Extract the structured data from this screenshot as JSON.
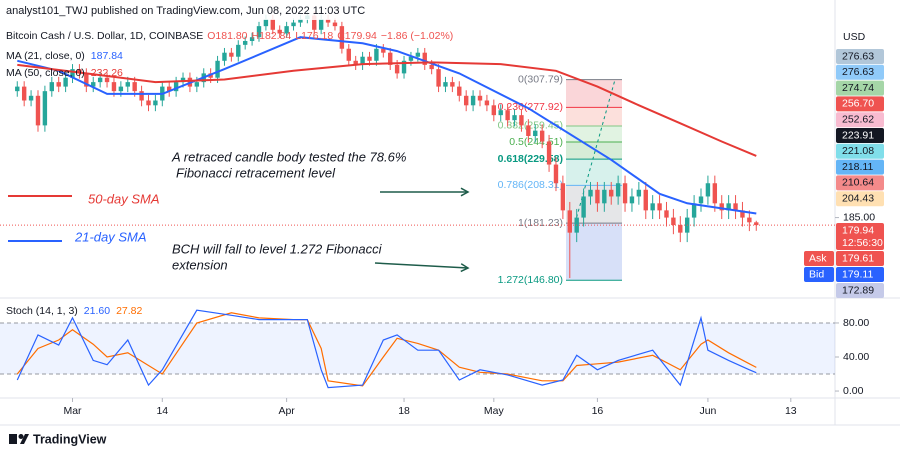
{
  "header": {
    "publisher": "analyst101_TWJ published on TradingView.com, Jun 08, 2022 11:03 UTC"
  },
  "chart_data": [
    {
      "type": "candlestick",
      "title": "Bitcoin Cash / U.S. Dollar, 1D, COINBASE",
      "ohlc_legend": [
        "O181.80",
        "H182.84",
        "L176.18",
        "C179.94",
        "−1.86 (−1.02%)"
      ],
      "open": [
        295,
        300,
        285,
        290,
        260,
        295,
        305,
        300,
        310,
        320,
        315,
        300,
        305,
        310,
        305,
        295,
        300,
        305,
        295,
        285,
        280,
        285,
        300,
        295,
        305,
        310,
        300,
        305,
        315,
        310,
        330,
        340,
        335,
        350,
        355,
        360,
        375,
        385,
        370,
        365,
        375,
        380,
        385,
        390,
        370,
        385,
        380,
        375,
        345,
        330,
        325,
        335,
        330,
        345,
        340,
        325,
        315,
        330,
        335,
        340,
        325,
        320,
        300,
        305,
        300,
        290,
        280,
        290,
        285,
        280,
        270,
        275,
        265,
        270,
        260,
        250,
        255,
        245,
        225,
        210,
        190,
        175,
        185,
        200,
        205,
        195,
        205,
        200,
        210,
        195,
        200,
        205,
        190,
        195,
        190,
        185,
        180,
        175,
        185,
        195,
        200,
        210,
        195,
        190,
        195,
        190,
        185,
        181.8
      ],
      "high": [
        306,
        306,
        296,
        296,
        301,
        311,
        311,
        316,
        326,
        326,
        321,
        311,
        316,
        316,
        311,
        306,
        311,
        311,
        301,
        291,
        291,
        306,
        306,
        311,
        316,
        316,
        311,
        321,
        321,
        336,
        346,
        346,
        356,
        361,
        366,
        381,
        391,
        391,
        376,
        381,
        386,
        391,
        396,
        396,
        391,
        391,
        386,
        381,
        351,
        336,
        341,
        341,
        351,
        351,
        346,
        331,
        336,
        341,
        346,
        346,
        331,
        326,
        311,
        311,
        306,
        296,
        296,
        296,
        291,
        286,
        281,
        281,
        276,
        276,
        266,
        261,
        261,
        251,
        231,
        216,
        196,
        191,
        206,
        211,
        211,
        211,
        211,
        216,
        216,
        206,
        211,
        211,
        201,
        201,
        196,
        191,
        186,
        191,
        201,
        206,
        216,
        216,
        201,
        201,
        201,
        196,
        190,
        182.84
      ],
      "low": [
        289,
        279,
        279,
        254,
        254,
        289,
        294,
        294,
        304,
        309,
        294,
        294,
        299,
        299,
        289,
        289,
        294,
        289,
        279,
        274,
        274,
        279,
        289,
        289,
        299,
        294,
        294,
        299,
        304,
        304,
        324,
        329,
        329,
        344,
        349,
        354,
        369,
        364,
        359,
        359,
        369,
        374,
        379,
        364,
        364,
        374,
        369,
        339,
        324,
        319,
        319,
        324,
        324,
        334,
        319,
        309,
        309,
        324,
        329,
        319,
        314,
        294,
        294,
        294,
        284,
        274,
        274,
        279,
        274,
        264,
        264,
        259,
        259,
        254,
        244,
        244,
        239,
        219,
        204,
        184,
        148,
        169,
        179,
        194,
        189,
        189,
        194,
        194,
        189,
        189,
        194,
        184,
        184,
        184,
        179,
        174,
        169,
        169,
        179,
        189,
        194,
        189,
        184,
        184,
        184,
        179,
        176,
        176.18
      ],
      "close": [
        300,
        285,
        290,
        260,
        295,
        305,
        300,
        310,
        320,
        315,
        300,
        305,
        310,
        305,
        295,
        300,
        305,
        295,
        285,
        280,
        285,
        300,
        295,
        305,
        310,
        300,
        305,
        315,
        310,
        330,
        340,
        335,
        350,
        355,
        360,
        375,
        385,
        370,
        365,
        375,
        380,
        385,
        390,
        370,
        385,
        380,
        375,
        345,
        330,
        325,
        335,
        330,
        345,
        340,
        325,
        315,
        330,
        335,
        340,
        325,
        320,
        300,
        305,
        300,
        290,
        280,
        290,
        285,
        280,
        270,
        275,
        265,
        270,
        260,
        250,
        255,
        245,
        225,
        210,
        190,
        175,
        185,
        200,
        205,
        195,
        205,
        200,
        210,
        195,
        200,
        205,
        190,
        195,
        190,
        185,
        180,
        175,
        185,
        195,
        200,
        210,
        195,
        190,
        195,
        190,
        185,
        181.8,
        179.94
      ],
      "up_color": "#26a69a",
      "down_color": "#ef5350",
      "series": [
        {
          "name": "MA (21, close, 0)",
          "color": "#2962ff",
          "x": [
            0,
            6,
            13,
            21,
            30,
            41,
            50,
            55,
            64,
            74,
            86,
            93,
            97,
            107
          ],
          "values": [
            330,
            318,
            292,
            292,
            320,
            360,
            352,
            342,
            315,
            277,
            229,
            202,
            195,
            187.84
          ]
        },
        {
          "name": "MA (50, close, 0)",
          "color": "#e53935",
          "x": [
            0,
            10,
            20,
            30,
            40,
            50,
            60,
            70,
            78,
            84,
            90,
            96,
            102,
            107
          ],
          "values": [
            325,
            315,
            305,
            308,
            318,
            326,
            328,
            326,
            318,
            300,
            280,
            262,
            245,
            232.26
          ]
        }
      ],
      "log_scale": true,
      "xlim": [
        -2.5,
        118.4
      ],
      "ylim": [
        138,
        413
      ],
      "yticks": [
        {
          "value": 185,
          "label": "185.00"
        }
      ],
      "axis_unit": "USD",
      "price_tags": [
        {
          "label": "276.63",
          "color": "#b2c7d9",
          "text_color": "#131722"
        },
        {
          "label": "276.63",
          "color": "#90caf9",
          "text_color": "#131722"
        },
        {
          "label": "274.74",
          "color": "#a5d6a7",
          "text_color": "#131722"
        },
        {
          "label": "256.70",
          "color": "#ef5350",
          "text_color": "#ffffff"
        },
        {
          "label": "252.62",
          "color": "#f8bbd0",
          "text_color": "#131722"
        },
        {
          "label": "223.91",
          "color": "#131722",
          "text_color": "#ffffff"
        },
        {
          "label": "221.08",
          "color": "#80deea",
          "text_color": "#131722"
        },
        {
          "label": "218.11",
          "color": "#64b5f6",
          "text_color": "#131722"
        },
        {
          "label": "210.64",
          "color": "#f48a8a",
          "text_color": "#131722"
        },
        {
          "label": "204.43",
          "color": "#ffe0b2",
          "text_color": "#131722"
        },
        {
          "label": "179.94",
          "sub": "12:56:30",
          "color": "#ef5350",
          "text_color": "#ffffff"
        },
        {
          "label": "179.61",
          "prefix": "Ask",
          "color": "#ef5350",
          "text_color": "#ffffff"
        },
        {
          "label": "179.11",
          "prefix": "Bid",
          "color": "#2962ff",
          "text_color": "#ffffff"
        },
        {
          "label": "172.89",
          "color": "#c5cae9",
          "text_color": "#131722"
        }
      ],
      "fibonacci": {
        "levels": [
          {
            "price": 307.79,
            "label": "0(307.79)",
            "color": "#787b86"
          },
          {
            "price": 277.92,
            "label": "0.236(277.92)",
            "color": "#f23645"
          },
          {
            "price": 259.45,
            "label": "0.382(259.45)",
            "color": "#81c784"
          },
          {
            "price": 244.51,
            "label": "0.5(244.51)",
            "color": "#4caf50"
          },
          {
            "price": 229.58,
            "label": "0.618(229.58)",
            "color": "#089981"
          },
          {
            "price": 208.31,
            "label": "0.786(208.31)",
            "color": "#64b5f6"
          },
          {
            "price": 181.23,
            "label": "1(181.23)",
            "color": "#787b86"
          },
          {
            "price": 146.8,
            "label": "1.272(146.80)",
            "color": "#089981"
          }
        ],
        "band_colors": [
          "#f8c8cc",
          "#fbd5d0",
          "#d7efd8",
          "#c8e6c9",
          "#c9ece6",
          "#dcdde0",
          "#c9d6f5"
        ]
      },
      "annotations": [
        {
          "lines": [
            "A retraced candle body tested the 78.6%",
            " Fibonacci retracement level"
          ],
          "color": "#131722"
        },
        {
          "lines": [
            "BCH will fall to level 1.272 Fibonacci",
            "extension"
          ],
          "color": "#131722"
        }
      ],
      "sma_labels": [
        {
          "text": "50-day SMA",
          "color": "#e53935"
        },
        {
          "text": "21-day SMA",
          "color": "#2962ff"
        }
      ]
    },
    {
      "type": "stochastic",
      "title": "Stoch (14, 1, 3)",
      "series": [
        {
          "name": "%K",
          "color": "#2962ff",
          "value_label": "21.60",
          "x": [
            0,
            3,
            6,
            8,
            11,
            13,
            16,
            19,
            21,
            26,
            31,
            35,
            40,
            42,
            44,
            45,
            50,
            53,
            55,
            58,
            61,
            64,
            67,
            71,
            76,
            79,
            81,
            84,
            87,
            92,
            96,
            99,
            100,
            103,
            106,
            107
          ],
          "values": [
            13,
            66,
            54,
            86,
            36,
            31,
            60,
            7,
            25,
            95,
            89,
            84,
            84,
            84,
            25,
            4,
            7,
            60,
            66,
            48,
            48,
            13,
            25,
            19,
            7,
            13,
            42,
            25,
            36,
            48,
            7,
            86,
            48,
            36,
            25,
            21.6
          ]
        },
        {
          "name": "%D",
          "color": "#ff6d00",
          "value_label": "27.82",
          "x": [
            0,
            3,
            6,
            8,
            11,
            13,
            16,
            19,
            21,
            26,
            31,
            35,
            40,
            42,
            44,
            45,
            50,
            53,
            55,
            58,
            61,
            64,
            67,
            71,
            76,
            79,
            81,
            84,
            87,
            92,
            96,
            99,
            100,
            103,
            106,
            107
          ],
          "values": [
            20,
            50,
            60,
            72,
            55,
            40,
            45,
            30,
            20,
            80,
            92,
            86,
            84,
            84,
            50,
            12,
            6,
            40,
            62,
            56,
            48,
            28,
            22,
            20,
            12,
            12,
            30,
            32,
            34,
            42,
            25,
            55,
            60,
            45,
            32,
            27.82
          ]
        }
      ],
      "xlim": [
        -2.5,
        118.4
      ],
      "ylim": [
        -7,
        107
      ],
      "yticks": [
        {
          "value": 80,
          "label": "80.00"
        },
        {
          "value": 40,
          "label": "40.00"
        },
        {
          "value": 0,
          "label": "0.00"
        }
      ],
      "band": [
        20,
        80
      ],
      "xticks": [
        {
          "value": 8,
          "label": "Mar"
        },
        {
          "value": 21,
          "label": "14"
        },
        {
          "value": 39,
          "label": "Apr"
        },
        {
          "value": 56,
          "label": "18"
        },
        {
          "value": 69,
          "label": "May"
        },
        {
          "value": 84,
          "label": "16"
        },
        {
          "value": 100,
          "label": "Jun"
        },
        {
          "value": 112,
          "label": "13"
        }
      ]
    }
  ],
  "footer": {
    "brand": "TradingView"
  }
}
